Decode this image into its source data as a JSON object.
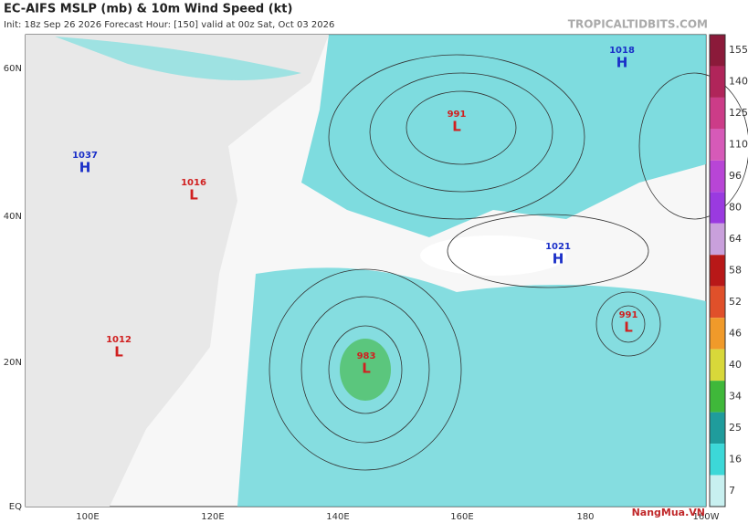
{
  "header": {
    "title": "EC-AIFS MSLP (mb) & 10m Wind Speed (kt)",
    "subtitle": "Init: 18z Sep 26 2026   Forecast Hour: [150]   valid at 00z Sat, Oct 03 2026",
    "source": "TROPICALTIDBITS.COM"
  },
  "map": {
    "lat_labels": [
      "60N",
      "40N",
      "20N",
      "EQ"
    ],
    "lon_labels": [
      "100E",
      "120E",
      "140E",
      "160E",
      "180",
      "160W"
    ],
    "systems": [
      {
        "value": "1037",
        "type": "H"
      },
      {
        "value": "1016",
        "type": "L"
      },
      {
        "value": "1012",
        "type": "L"
      },
      {
        "value": "1018",
        "type": "H"
      },
      {
        "value": "991",
        "type": "L"
      },
      {
        "value": "1021",
        "type": "H"
      },
      {
        "value": "983",
        "type": "L"
      },
      {
        "value": "991",
        "type": "L"
      }
    ]
  },
  "colorbar": {
    "ticks": [
      {
        "label": "155",
        "color": "#8b1a3a"
      },
      {
        "label": "140",
        "color": "#b0255a"
      },
      {
        "label": "125",
        "color": "#cc3c88"
      },
      {
        "label": "110",
        "color": "#d65ab8"
      },
      {
        "label": "96",
        "color": "#b845d6"
      },
      {
        "label": "80",
        "color": "#9a3ae0"
      },
      {
        "label": "64",
        "color": "#c9a0dc"
      },
      {
        "label": "58",
        "color": "#b81818"
      },
      {
        "label": "52",
        "color": "#e0502a"
      },
      {
        "label": "46",
        "color": "#f09a2a"
      },
      {
        "label": "40",
        "color": "#d8d83a"
      },
      {
        "label": "34",
        "color": "#3fb83a"
      },
      {
        "label": "25",
        "color": "#1f9c9c"
      },
      {
        "label": "16",
        "color": "#3cd8d8"
      },
      {
        "label": "7",
        "color": "#c8f0f0"
      }
    ]
  },
  "watermark": "NangMua.VN"
}
